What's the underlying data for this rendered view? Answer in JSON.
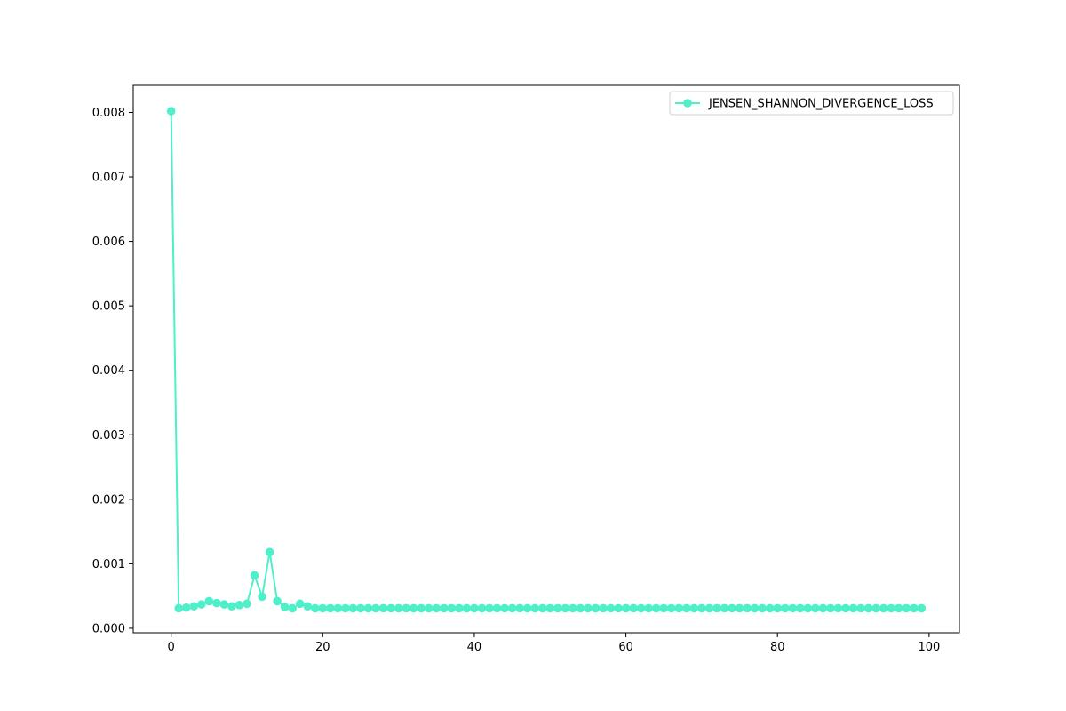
{
  "chart_data": {
    "type": "line",
    "title": "",
    "xlabel": "",
    "ylabel": "",
    "xlim": [
      -5,
      104
    ],
    "ylim": [
      -7e-05,
      0.00842
    ],
    "xticks": [
      0,
      20,
      40,
      60,
      80,
      100
    ],
    "xtick_labels": [
      "0",
      "20",
      "40",
      "60",
      "80",
      "100"
    ],
    "yticks": [
      0.0,
      0.001,
      0.002,
      0.003,
      0.004,
      0.005,
      0.006,
      0.007,
      0.008
    ],
    "ytick_labels": [
      "0.000",
      "0.001",
      "0.002",
      "0.003",
      "0.004",
      "0.005",
      "0.006",
      "0.007",
      "0.008"
    ],
    "grid": false,
    "legend_position": "top-right",
    "series": [
      {
        "name": "JENSEN_SHANNON_DIVERGENCE_LOSS",
        "color": "#4ff0c9",
        "marker": "circle",
        "x": [
          0,
          1,
          2,
          3,
          4,
          5,
          6,
          7,
          8,
          9,
          10,
          11,
          12,
          13,
          14,
          15,
          16,
          17,
          18,
          19,
          20,
          21,
          22,
          23,
          24,
          25,
          26,
          27,
          28,
          29,
          30,
          31,
          32,
          33,
          34,
          35,
          36,
          37,
          38,
          39,
          40,
          41,
          42,
          43,
          44,
          45,
          46,
          47,
          48,
          49,
          50,
          51,
          52,
          53,
          54,
          55,
          56,
          57,
          58,
          59,
          60,
          61,
          62,
          63,
          64,
          65,
          66,
          67,
          68,
          69,
          70,
          71,
          72,
          73,
          74,
          75,
          76,
          77,
          78,
          79,
          80,
          81,
          82,
          83,
          84,
          85,
          86,
          87,
          88,
          89,
          90,
          91,
          92,
          93,
          94,
          95,
          96,
          97,
          98,
          99
        ],
        "values": [
          0.00802,
          0.00031,
          0.00032,
          0.00034,
          0.00037,
          0.00042,
          0.00039,
          0.00037,
          0.00034,
          0.00036,
          0.00038,
          0.00082,
          0.00049,
          0.00118,
          0.00042,
          0.00033,
          0.00031,
          0.00038,
          0.00034,
          0.00031,
          0.00031,
          0.00031,
          0.00031,
          0.00031,
          0.00031,
          0.00031,
          0.00031,
          0.00031,
          0.00031,
          0.00031,
          0.00031,
          0.00031,
          0.00031,
          0.00031,
          0.00031,
          0.00031,
          0.00031,
          0.00031,
          0.00031,
          0.00031,
          0.00031,
          0.00031,
          0.00031,
          0.00031,
          0.00031,
          0.00031,
          0.00031,
          0.00031,
          0.00031,
          0.00031,
          0.00031,
          0.00031,
          0.00031,
          0.00031,
          0.00031,
          0.00031,
          0.00031,
          0.00031,
          0.00031,
          0.00031,
          0.00031,
          0.00031,
          0.00031,
          0.00031,
          0.00031,
          0.00031,
          0.00031,
          0.00031,
          0.00031,
          0.00031,
          0.00031,
          0.00031,
          0.00031,
          0.00031,
          0.00031,
          0.00031,
          0.00031,
          0.00031,
          0.00031,
          0.00031,
          0.00031,
          0.00031,
          0.00031,
          0.00031,
          0.00031,
          0.00031,
          0.00031,
          0.00031,
          0.00031,
          0.00031,
          0.00031,
          0.00031,
          0.00031,
          0.00031,
          0.00031,
          0.00031,
          0.00031,
          0.00031,
          0.00031,
          0.00031
        ]
      }
    ]
  }
}
